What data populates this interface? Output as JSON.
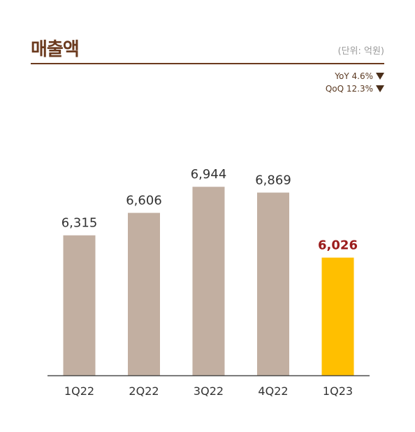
{
  "header": {
    "title": "매출액",
    "unit": "(단위: 억원)"
  },
  "growth": {
    "yoy": "YoY 4.6%",
    "qoq": "QoQ 12.3%"
  },
  "colors": {
    "bar": "#c2afa1",
    "highlight_bar": "#ffbf00",
    "highlight_label": "#9b1c1c",
    "accent": "#6b3a1e"
  },
  "chart_data": {
    "type": "bar",
    "categories": [
      "1Q22",
      "2Q22",
      "3Q22",
      "4Q22",
      "1Q23"
    ],
    "values": [
      6315,
      6606,
      6944,
      6869,
      6026
    ],
    "value_labels": [
      "6,315",
      "6,606",
      "6,944",
      "6,869",
      "6,026"
    ],
    "highlight_index": 4,
    "ylim": [
      4500,
      7100
    ],
    "grid": false,
    "legend": "none"
  }
}
